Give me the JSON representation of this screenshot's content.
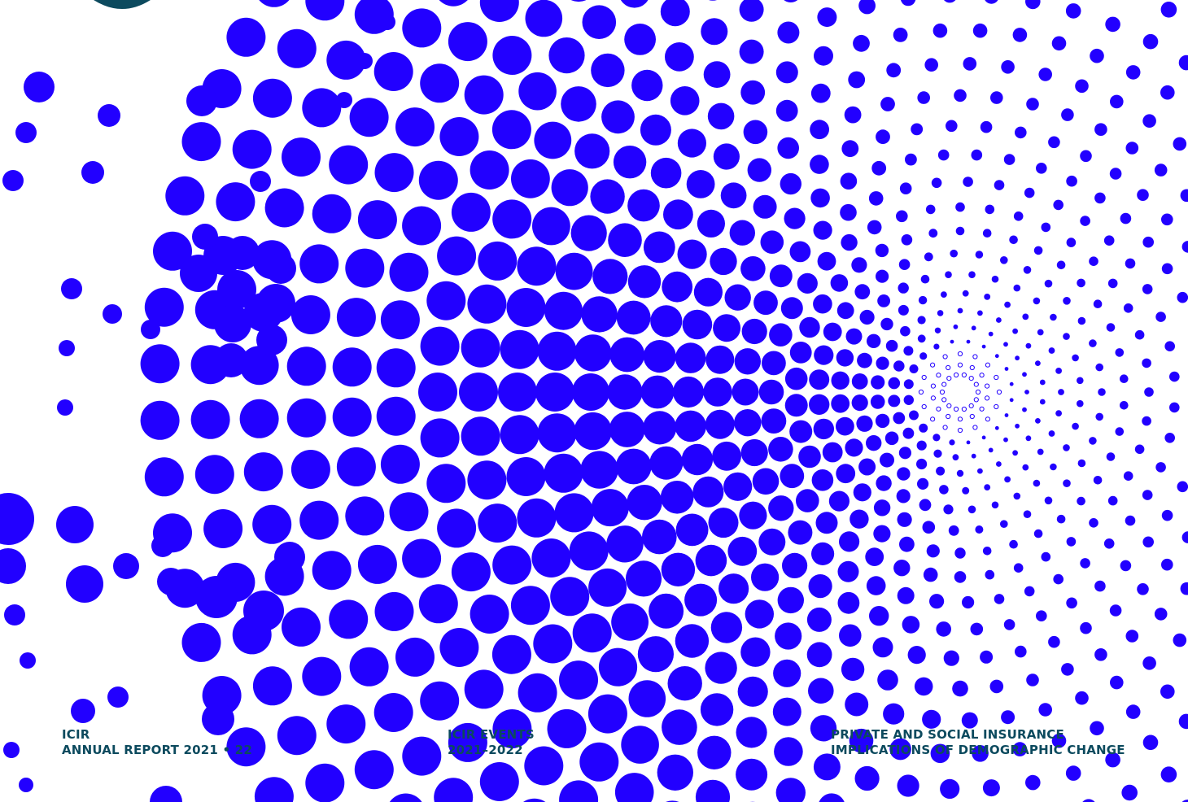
{
  "colors": {
    "dots": "#2200ff",
    "text": "#0c4a5e",
    "logo": "#0c4a5e",
    "background": "#ffffff"
  },
  "captions": [
    {
      "line1": "ICIR",
      "line2": "ANNUAL REPORT 2021 • 22"
    },
    {
      "line1": "ICIR EVENTS",
      "line2": "2021–2022"
    },
    {
      "line1": "PRIVATE AND SOCIAL INSURANCE",
      "line2": "IMPLICATIONS OF DEMOGRAPHIC CHANGE"
    }
  ]
}
